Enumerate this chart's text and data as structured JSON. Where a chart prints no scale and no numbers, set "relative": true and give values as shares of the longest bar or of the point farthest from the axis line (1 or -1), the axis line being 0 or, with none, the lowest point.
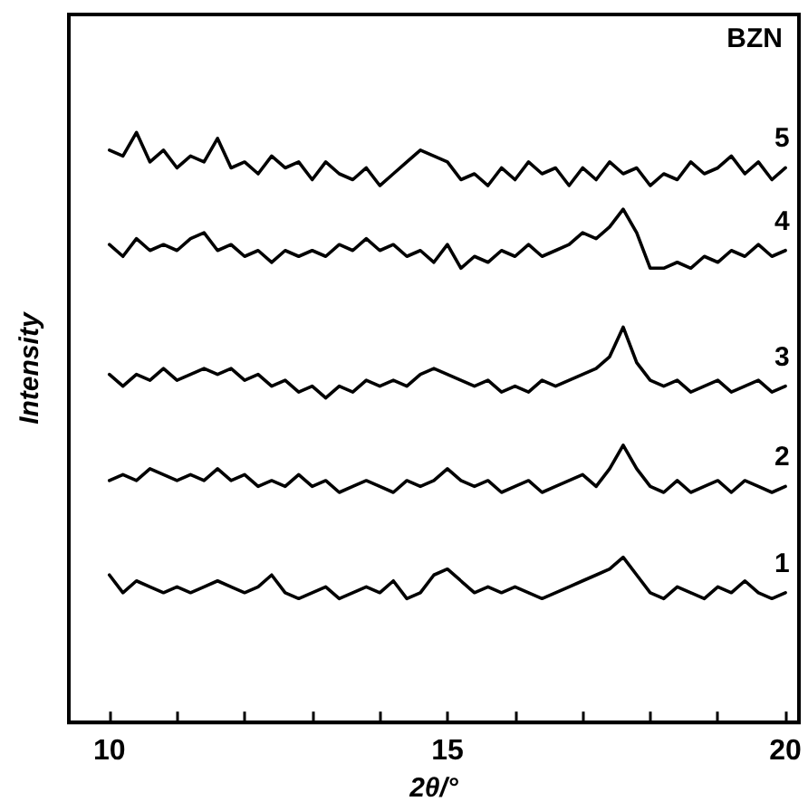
{
  "chart_data": {
    "type": "line",
    "xlabel": "2θ/°",
    "ylabel": "Intensity",
    "annotations": [
      "BZN"
    ],
    "relative": true,
    "legend": false,
    "grid": false,
    "marker": "none",
    "line_style": "solid",
    "tick_labels": "x",
    "xlim": [
      9.4,
      20.2
    ],
    "xticks": [
      10,
      {
        "value": 11,
        "label": null
      },
      {
        "value": 12,
        "label": null
      },
      {
        "value": 13,
        "label": null
      },
      {
        "value": 14,
        "label": null
      },
      15,
      {
        "value": 16,
        "label": null
      },
      {
        "value": 17,
        "label": null
      },
      {
        "value": 18,
        "label": null
      },
      {
        "value": 19,
        "label": null
      },
      20
    ],
    "x": [
      10,
      10.2,
      10.4,
      10.6,
      10.8,
      11,
      11.2,
      11.4,
      11.6,
      11.8,
      12,
      12.2,
      12.4,
      12.6,
      12.8,
      13,
      13.2,
      13.4,
      13.6,
      13.8,
      14,
      14.2,
      14.4,
      14.6,
      14.8,
      15,
      15.2,
      15.4,
      15.6,
      15.8,
      16,
      16.2,
      16.4,
      16.6,
      16.8,
      17,
      17.2,
      17.4,
      17.6,
      17.8,
      18,
      18.2,
      18.4,
      18.6,
      18.8,
      19,
      19.2,
      19.4,
      19.6,
      19.8,
      20
    ],
    "series": [
      {
        "name": "1",
        "color": "#000000",
        "values": [
          0.25,
          0.22,
          0.24,
          0.23,
          0.22,
          0.23,
          0.22,
          0.23,
          0.24,
          0.23,
          0.22,
          0.23,
          0.25,
          0.22,
          0.21,
          0.22,
          0.23,
          0.21,
          0.22,
          0.23,
          0.22,
          0.24,
          0.21,
          0.22,
          0.25,
          0.26,
          0.24,
          0.22,
          0.23,
          0.22,
          0.23,
          0.22,
          0.21,
          0.22,
          0.23,
          0.24,
          0.25,
          0.26,
          0.28,
          0.25,
          0.22,
          0.21,
          0.23,
          0.22,
          0.21,
          0.23,
          0.22,
          0.24,
          0.22,
          0.21,
          0.22
        ]
      },
      {
        "name": "2",
        "color": "#000000",
        "values": [
          0.41,
          0.42,
          0.41,
          0.43,
          0.42,
          0.41,
          0.42,
          0.41,
          0.43,
          0.41,
          0.42,
          0.4,
          0.41,
          0.4,
          0.42,
          0.4,
          0.41,
          0.39,
          0.4,
          0.41,
          0.4,
          0.39,
          0.41,
          0.4,
          0.41,
          0.43,
          0.41,
          0.4,
          0.41,
          0.39,
          0.4,
          0.41,
          0.39,
          0.4,
          0.41,
          0.42,
          0.4,
          0.43,
          0.47,
          0.43,
          0.4,
          0.39,
          0.41,
          0.39,
          0.4,
          0.41,
          0.39,
          0.41,
          0.4,
          0.39,
          0.4
        ]
      },
      {
        "name": "3",
        "color": "#000000",
        "values": [
          0.59,
          0.57,
          0.59,
          0.58,
          0.6,
          0.58,
          0.59,
          0.6,
          0.59,
          0.6,
          0.58,
          0.59,
          0.57,
          0.58,
          0.56,
          0.57,
          0.55,
          0.57,
          0.56,
          0.58,
          0.57,
          0.58,
          0.57,
          0.59,
          0.6,
          0.59,
          0.58,
          0.57,
          0.58,
          0.56,
          0.57,
          0.56,
          0.58,
          0.57,
          0.58,
          0.59,
          0.6,
          0.62,
          0.67,
          0.61,
          0.58,
          0.57,
          0.58,
          0.56,
          0.57,
          0.58,
          0.56,
          0.57,
          0.58,
          0.56,
          0.57
        ]
      },
      {
        "name": "4",
        "color": "#000000",
        "values": [
          0.81,
          0.79,
          0.82,
          0.8,
          0.81,
          0.8,
          0.82,
          0.83,
          0.8,
          0.81,
          0.79,
          0.8,
          0.78,
          0.8,
          0.79,
          0.8,
          0.79,
          0.81,
          0.8,
          0.82,
          0.8,
          0.81,
          0.79,
          0.8,
          0.78,
          0.81,
          0.77,
          0.79,
          0.78,
          0.8,
          0.79,
          0.81,
          0.79,
          0.8,
          0.81,
          0.83,
          0.82,
          0.84,
          0.87,
          0.83,
          0.77,
          0.77,
          0.78,
          0.77,
          0.79,
          0.78,
          0.8,
          0.79,
          0.81,
          0.79,
          0.8
        ]
      },
      {
        "name": "5",
        "color": "#000000",
        "values": [
          0.97,
          0.96,
          1.0,
          0.95,
          0.97,
          0.94,
          0.96,
          0.95,
          0.99,
          0.94,
          0.95,
          0.93,
          0.96,
          0.94,
          0.95,
          0.92,
          0.95,
          0.93,
          0.92,
          0.94,
          0.91,
          0.93,
          0.95,
          0.97,
          0.96,
          0.95,
          0.92,
          0.93,
          0.91,
          0.94,
          0.92,
          0.95,
          0.93,
          0.94,
          0.91,
          0.94,
          0.92,
          0.95,
          0.93,
          0.94,
          0.91,
          0.93,
          0.92,
          0.95,
          0.93,
          0.94,
          0.96,
          0.93,
          0.95,
          0.92,
          0.94
        ]
      }
    ]
  }
}
